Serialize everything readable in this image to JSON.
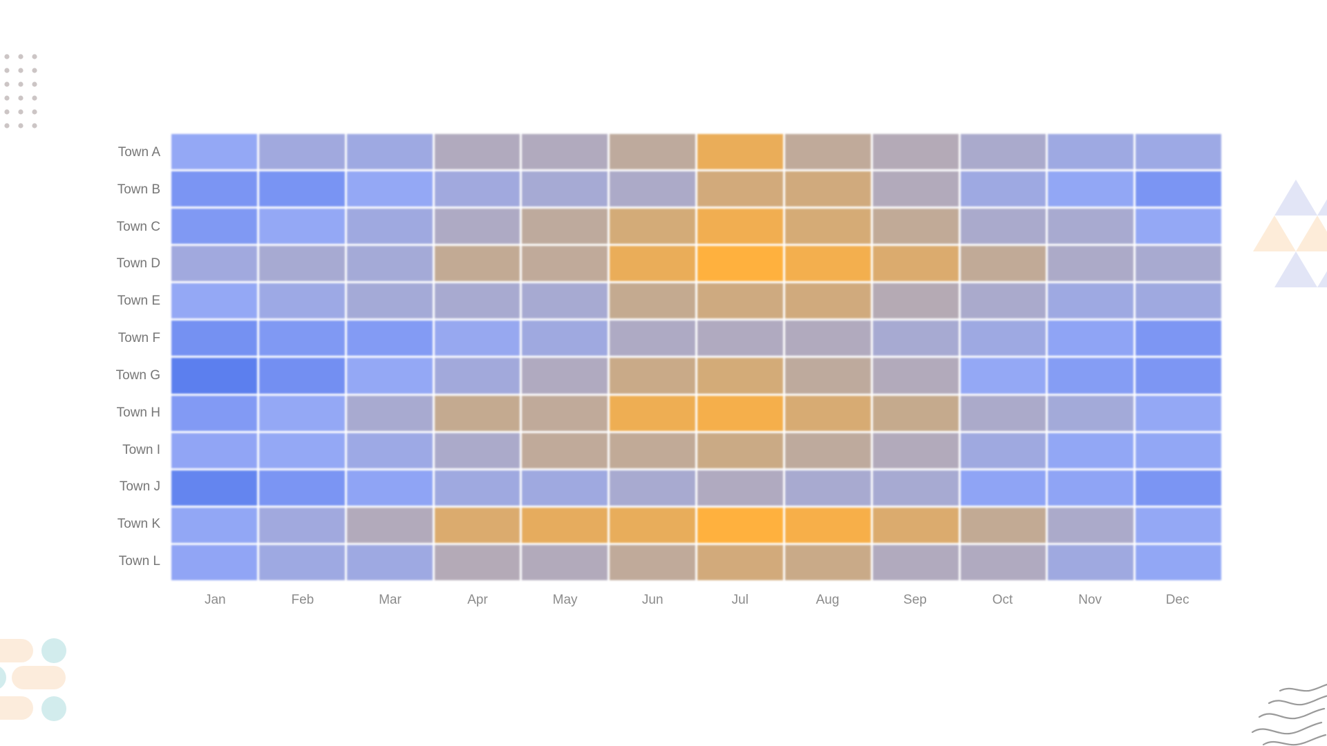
{
  "chart_data": {
    "type": "heatmap",
    "title": "",
    "xlabel": "",
    "ylabel": "",
    "x_categories": [
      "Jan",
      "Feb",
      "Mar",
      "Apr",
      "May",
      "Jun",
      "Jul",
      "Aug",
      "Sep",
      "Oct",
      "Nov",
      "Dec"
    ],
    "y_categories": [
      "Town A",
      "Town B",
      "Town C",
      "Town D",
      "Town E",
      "Town F",
      "Town G",
      "Town H",
      "Town I",
      "Town J",
      "Town K",
      "Town L"
    ],
    "values": [
      [
        30,
        40,
        38,
        55,
        55,
        65,
        90,
        66,
        57,
        48,
        38,
        37
      ],
      [
        15,
        14,
        30,
        40,
        44,
        50,
        77,
        76,
        56,
        38,
        29,
        15
      ],
      [
        18,
        30,
        39,
        52,
        65,
        78,
        93,
        79,
        67,
        48,
        46,
        30
      ],
      [
        40,
        45,
        43,
        68,
        66,
        90,
        100,
        94,
        82,
        67,
        50,
        46
      ],
      [
        30,
        37,
        43,
        46,
        45,
        69,
        75,
        76,
        58,
        48,
        38,
        39
      ],
      [
        12,
        18,
        20,
        32,
        39,
        52,
        54,
        55,
        45,
        38,
        27,
        16
      ],
      [
        0,
        11,
        30,
        41,
        54,
        72,
        78,
        65,
        56,
        30,
        21,
        16
      ],
      [
        19,
        30,
        46,
        69,
        66,
        92,
        95,
        80,
        70,
        49,
        42,
        30
      ],
      [
        28,
        30,
        37,
        49,
        66,
        67,
        73,
        65,
        56,
        39,
        29,
        29
      ],
      [
        4,
        15,
        27,
        39,
        39,
        46,
        54,
        46,
        45,
        27,
        27,
        15
      ],
      [
        29,
        40,
        56,
        82,
        88,
        89,
        100,
        96,
        82,
        68,
        49,
        30
      ],
      [
        28,
        38,
        38,
        57,
        56,
        66,
        77,
        72,
        55,
        54,
        39,
        29
      ]
    ],
    "value_range": [
      0,
      100
    ],
    "grid": "white 3px gaps between cells",
    "legend": "none",
    "colormap_stops": [
      {
        "v": 0,
        "color": "#5c7fee"
      },
      {
        "v": 15,
        "color": "#7b95f3"
      },
      {
        "v": 30,
        "color": "#94a8f5"
      },
      {
        "v": 45,
        "color": "#a7aad2"
      },
      {
        "v": 55,
        "color": "#b1aabe"
      },
      {
        "v": 70,
        "color": "#c5aa8d"
      },
      {
        "v": 85,
        "color": "#e0ab66"
      },
      {
        "v": 100,
        "color": "#ffb13e"
      }
    ],
    "axis_text_color": "#8b8b8b"
  },
  "decorations": {
    "dot_grid": {
      "name": "dot-grid-ornament",
      "color": "#ccc5c5",
      "cols": 3,
      "rows": 6
    },
    "triangles": {
      "name": "triangle-cluster-ornament",
      "lavender": "#e2e5f6",
      "peach": "#fdecd9"
    },
    "blobs": {
      "name": "pill-and-circle-ornament",
      "peach": "#fcecdc",
      "teal": "#d2eced"
    },
    "waves": {
      "name": "wave-lines-ornament",
      "color": "#9a9a9a"
    }
  }
}
